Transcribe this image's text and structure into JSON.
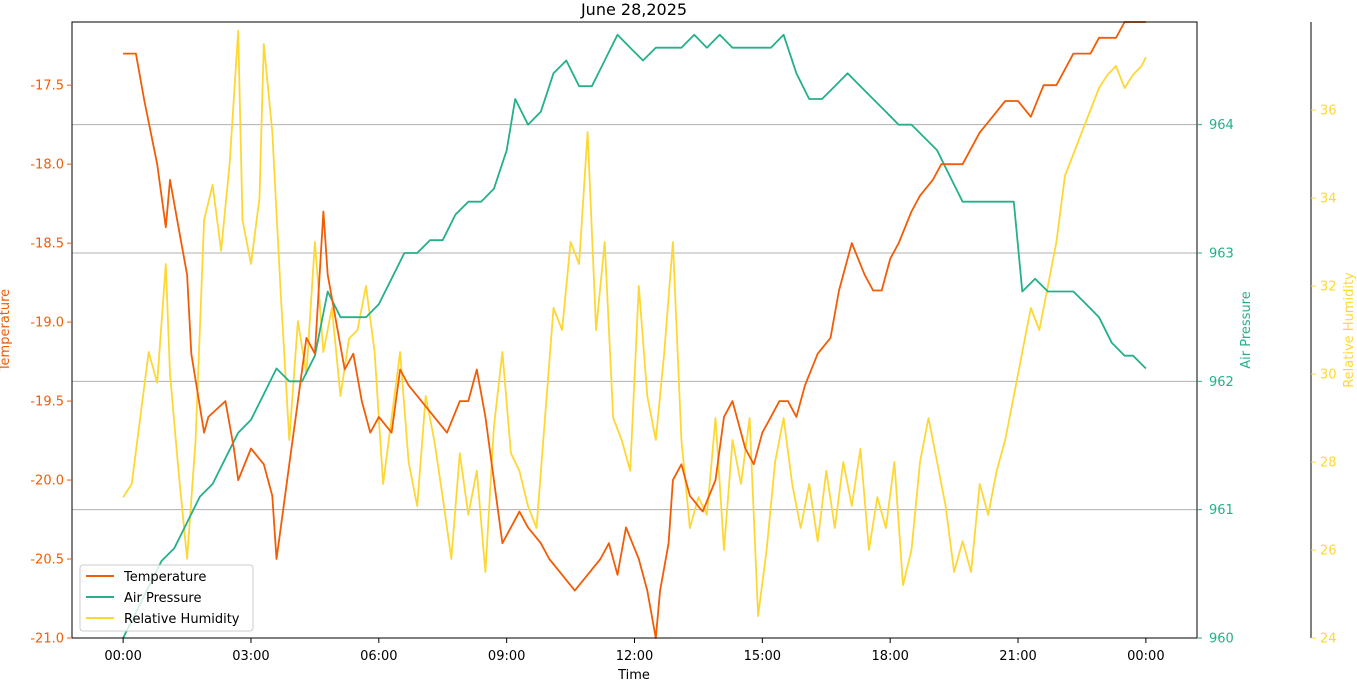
{
  "chart_data": {
    "type": "line",
    "title": "June 28,2025",
    "xlabel": "Time",
    "x_ticks": [
      "00:00",
      "03:00",
      "06:00",
      "09:00",
      "12:00",
      "15:00",
      "18:00",
      "21:00",
      "00:00"
    ],
    "x_range_hours": [
      -1.2,
      25.2
    ],
    "grid": "horizontal lines only, on the Air Pressure axis",
    "legend_position": "lower-left",
    "axes": {
      "temperature": {
        "label": "Temperature",
        "color": "#f25c05",
        "range": [
          -21.0,
          -17.1
        ],
        "ticks": [
          "-17.5",
          "-18.0",
          "-18.5",
          "-19.0",
          "-19.5",
          "-20.0",
          "-20.5",
          "-21.0"
        ],
        "tick_values": [
          -17.5,
          -18.0,
          -18.5,
          -19.0,
          -19.5,
          -20.0,
          -20.5,
          -21.0
        ]
      },
      "pressure": {
        "label": "Air Pressure",
        "color": "#24b08a",
        "range": [
          960,
          964.8
        ],
        "ticks": [
          "960",
          "961",
          "962",
          "963",
          "964"
        ],
        "tick_values": [
          960,
          961,
          962,
          963,
          964
        ]
      },
      "humidity": {
        "label": "Relative Humidity",
        "color": "#fdd835",
        "range": [
          24,
          38
        ],
        "ticks": [
          "24",
          "26",
          "28",
          "30",
          "32",
          "34",
          "36"
        ],
        "tick_values": [
          24,
          26,
          28,
          30,
          32,
          34,
          36
        ]
      }
    },
    "series": [
      {
        "name": "Temperature",
        "axis": "temperature",
        "x": [
          0,
          0.3,
          0.5,
          0.8,
          1.0,
          1.1,
          1.3,
          1.5,
          1.6,
          1.9,
          2.0,
          2.4,
          2.6,
          2.7,
          3.0,
          3.3,
          3.5,
          3.6,
          3.7,
          3.9,
          4.1,
          4.3,
          4.5,
          4.7,
          4.8,
          5.0,
          5.2,
          5.4,
          5.6,
          5.8,
          6.0,
          6.3,
          6.5,
          6.7,
          7.0,
          7.3,
          7.6,
          7.9,
          8.1,
          8.3,
          8.5,
          8.7,
          8.9,
          9.1,
          9.3,
          9.5,
          9.8,
          10.0,
          10.3,
          10.6,
          10.9,
          11.2,
          11.4,
          11.6,
          11.8,
          12.1,
          12.3,
          12.5,
          12.6,
          12.8,
          12.9,
          13.1,
          13.3,
          13.6,
          13.9,
          14.1,
          14.3,
          14.6,
          14.8,
          15.0,
          15.2,
          15.4,
          15.6,
          15.8,
          16.0,
          16.3,
          16.6,
          16.8,
          17.1,
          17.4,
          17.6,
          17.8,
          18.0,
          18.2,
          18.5,
          18.7,
          19.0,
          19.2,
          19.5,
          19.7,
          19.9,
          20.1,
          20.4,
          20.7,
          21.0,
          21.3,
          21.6,
          21.9,
          22.1,
          22.3,
          22.5,
          22.7,
          22.9,
          23.1,
          23.3,
          23.5,
          23.7,
          23.9,
          24.0
        ],
        "y": [
          -17.3,
          -17.3,
          -17.6,
          -18.0,
          -18.4,
          -18.1,
          -18.4,
          -18.7,
          -19.2,
          -19.7,
          -19.6,
          -19.5,
          -19.8,
          -20.0,
          -19.8,
          -19.9,
          -20.1,
          -20.5,
          -20.3,
          -19.9,
          -19.5,
          -19.1,
          -19.2,
          -18.3,
          -18.7,
          -19.0,
          -19.3,
          -19.2,
          -19.5,
          -19.7,
          -19.6,
          -19.7,
          -19.3,
          -19.4,
          -19.5,
          -19.6,
          -19.7,
          -19.5,
          -19.5,
          -19.3,
          -19.6,
          -20.0,
          -20.4,
          -20.3,
          -20.2,
          -20.3,
          -20.4,
          -20.5,
          -20.6,
          -20.7,
          -20.6,
          -20.5,
          -20.4,
          -20.6,
          -20.3,
          -20.5,
          -20.7,
          -21.0,
          -20.7,
          -20.4,
          -20.0,
          -19.9,
          -20.1,
          -20.2,
          -20.0,
          -19.6,
          -19.5,
          -19.8,
          -19.9,
          -19.7,
          -19.6,
          -19.5,
          -19.5,
          -19.6,
          -19.4,
          -19.2,
          -19.1,
          -18.8,
          -18.5,
          -18.7,
          -18.8,
          -18.8,
          -18.6,
          -18.5,
          -18.3,
          -18.2,
          -18.1,
          -18.0,
          -18.0,
          -18.0,
          -17.9,
          -17.8,
          -17.7,
          -17.6,
          -17.6,
          -17.7,
          -17.5,
          -17.5,
          -17.4,
          -17.3,
          -17.3,
          -17.3,
          -17.2,
          -17.2,
          -17.2,
          -17.1,
          -17.1,
          -17.1,
          -17.1
        ]
      },
      {
        "name": "Air Pressure",
        "axis": "pressure",
        "x": [
          0,
          0.3,
          0.6,
          0.9,
          1.2,
          1.5,
          1.8,
          2.1,
          2.4,
          2.7,
          3.0,
          3.3,
          3.6,
          3.9,
          4.2,
          4.5,
          4.8,
          5.1,
          5.4,
          5.7,
          6.0,
          6.3,
          6.6,
          6.9,
          7.2,
          7.5,
          7.8,
          8.1,
          8.4,
          8.7,
          9.0,
          9.2,
          9.5,
          9.8,
          10.1,
          10.4,
          10.7,
          11.0,
          11.3,
          11.6,
          11.9,
          12.2,
          12.5,
          12.8,
          13.1,
          13.4,
          13.7,
          14.0,
          14.3,
          14.6,
          14.9,
          15.2,
          15.5,
          15.8,
          16.1,
          16.4,
          16.7,
          17.0,
          17.3,
          17.6,
          17.9,
          18.2,
          18.5,
          18.8,
          19.1,
          19.4,
          19.7,
          20.0,
          20.3,
          20.6,
          20.9,
          21.1,
          21.4,
          21.7,
          22.0,
          22.3,
          22.6,
          22.9,
          23.2,
          23.5,
          23.7,
          24.0
        ],
        "y": [
          960.0,
          960.2,
          960.4,
          960.6,
          960.7,
          960.9,
          961.1,
          961.2,
          961.4,
          961.6,
          961.7,
          961.9,
          962.1,
          962.0,
          962.0,
          962.2,
          962.7,
          962.5,
          962.5,
          962.5,
          962.6,
          962.8,
          963.0,
          963.0,
          963.1,
          963.1,
          963.3,
          963.4,
          963.4,
          963.5,
          963.8,
          964.2,
          964.0,
          964.1,
          964.4,
          964.5,
          964.3,
          964.3,
          964.5,
          964.7,
          964.6,
          964.5,
          964.6,
          964.6,
          964.6,
          964.7,
          964.6,
          964.7,
          964.6,
          964.6,
          964.6,
          964.6,
          964.7,
          964.4,
          964.2,
          964.2,
          964.3,
          964.4,
          964.3,
          964.2,
          964.1,
          964.0,
          964.0,
          963.9,
          963.8,
          963.6,
          963.4,
          963.4,
          963.4,
          963.4,
          963.4,
          962.7,
          962.8,
          962.7,
          962.7,
          962.7,
          962.6,
          962.5,
          962.3,
          962.2,
          962.2,
          962.1
        ]
      },
      {
        "name": "Relative Humidity",
        "axis": "humidity",
        "x": [
          0,
          0.2,
          0.4,
          0.6,
          0.8,
          1.0,
          1.1,
          1.3,
          1.5,
          1.7,
          1.9,
          2.1,
          2.3,
          2.5,
          2.7,
          2.8,
          3.0,
          3.2,
          3.3,
          3.5,
          3.7,
          3.9,
          4.1,
          4.3,
          4.5,
          4.7,
          4.9,
          5.1,
          5.3,
          5.5,
          5.7,
          5.9,
          6.1,
          6.3,
          6.5,
          6.7,
          6.9,
          7.1,
          7.3,
          7.5,
          7.7,
          7.9,
          8.1,
          8.3,
          8.5,
          8.7,
          8.9,
          9.1,
          9.3,
          9.5,
          9.7,
          9.9,
          10.1,
          10.3,
          10.5,
          10.7,
          10.9,
          11.1,
          11.3,
          11.5,
          11.7,
          11.9,
          12.1,
          12.3,
          12.5,
          12.7,
          12.9,
          13.1,
          13.3,
          13.5,
          13.7,
          13.9,
          14.1,
          14.3,
          14.5,
          14.7,
          14.9,
          15.1,
          15.3,
          15.5,
          15.7,
          15.9,
          16.1,
          16.3,
          16.5,
          16.7,
          16.9,
          17.1,
          17.3,
          17.5,
          17.7,
          17.9,
          18.1,
          18.3,
          18.5,
          18.7,
          18.9,
          19.1,
          19.3,
          19.5,
          19.7,
          19.9,
          20.1,
          20.3,
          20.5,
          20.7,
          20.9,
          21.1,
          21.3,
          21.5,
          21.7,
          21.9,
          22.1,
          22.3,
          22.5,
          22.7,
          22.9,
          23.1,
          23.3,
          23.5,
          23.7,
          23.9,
          24.0
        ],
        "y": [
          27.2,
          27.5,
          29.0,
          30.5,
          29.8,
          32.5,
          30.0,
          27.8,
          25.8,
          28.5,
          33.5,
          34.3,
          32.8,
          34.8,
          37.8,
          33.5,
          32.5,
          34.0,
          37.5,
          35.5,
          31.8,
          28.5,
          31.2,
          30.0,
          33.0,
          30.5,
          31.5,
          29.5,
          30.8,
          31.0,
          32.0,
          30.5,
          27.5,
          29.0,
          30.5,
          28.0,
          27.0,
          29.5,
          28.5,
          27.2,
          25.8,
          28.2,
          26.8,
          27.8,
          25.5,
          28.8,
          30.5,
          28.2,
          27.8,
          27.0,
          26.5,
          29.0,
          31.5,
          31.0,
          33.0,
          32.5,
          35.5,
          31.0,
          33.0,
          29.0,
          28.5,
          27.8,
          32.0,
          29.5,
          28.5,
          30.5,
          33.0,
          28.5,
          26.5,
          27.2,
          26.8,
          29.0,
          26.0,
          28.5,
          27.5,
          29.0,
          24.5,
          26.0,
          28.0,
          29.0,
          27.5,
          26.5,
          27.5,
          26.2,
          27.8,
          26.5,
          28.0,
          27.0,
          28.3,
          26.0,
          27.2,
          26.5,
          28.0,
          25.2,
          26.0,
          28.0,
          29.0,
          28.0,
          27.0,
          25.5,
          26.2,
          25.5,
          27.5,
          26.8,
          27.8,
          28.5,
          29.5,
          30.5,
          31.5,
          31.0,
          32.0,
          33.0,
          34.5,
          35.0,
          35.5,
          36.0,
          36.5,
          36.8,
          37.0,
          36.5,
          36.8,
          37.0,
          37.2
        ]
      }
    ]
  }
}
